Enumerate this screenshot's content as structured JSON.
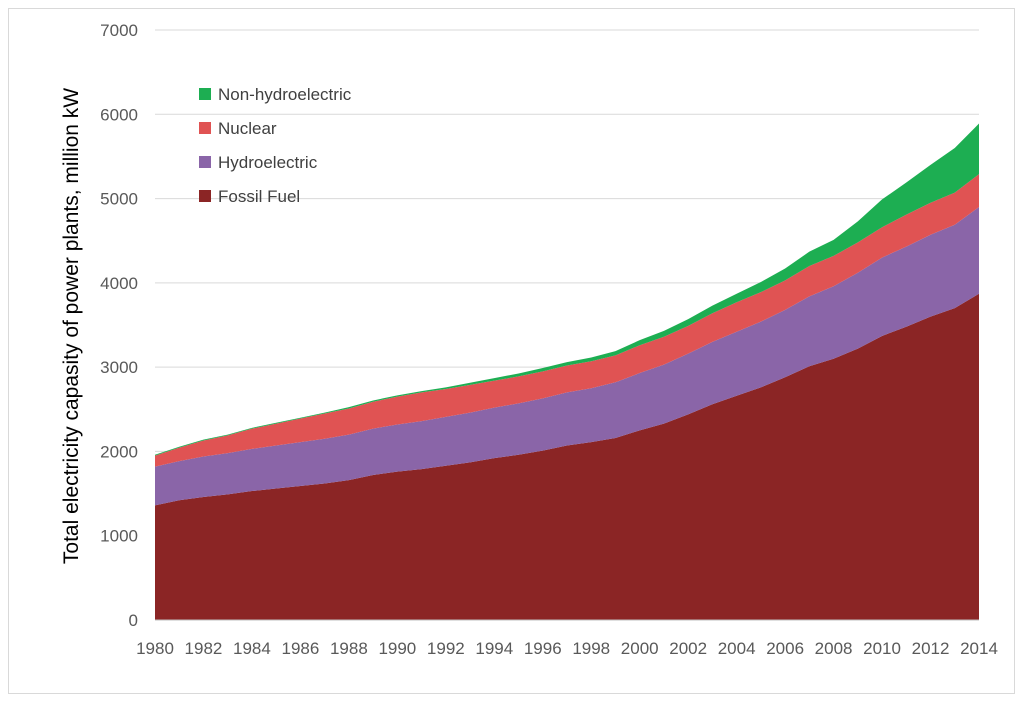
{
  "chart_data": {
    "type": "area",
    "stacked": true,
    "title": "",
    "xlabel": "",
    "ylabel": "Total electricity capasity of power plants, million kW",
    "ylim": [
      0,
      7000
    ],
    "yticks": [
      0,
      1000,
      2000,
      3000,
      4000,
      5000,
      6000,
      7000
    ],
    "xtick_labels": [
      "1980",
      "1982",
      "1984",
      "1986",
      "1988",
      "1990",
      "1992",
      "1994",
      "1996",
      "1998",
      "2000",
      "2002",
      "2004",
      "2006",
      "2008",
      "2010",
      "2012",
      "2014"
    ],
    "grid": "horizontal",
    "legend_position": "top-left",
    "x": [
      1980,
      1981,
      1982,
      1983,
      1984,
      1985,
      1986,
      1987,
      1988,
      1989,
      1990,
      1991,
      1992,
      1993,
      1994,
      1995,
      1996,
      1997,
      1998,
      1999,
      2000,
      2001,
      2002,
      2003,
      2004,
      2005,
      2006,
      2007,
      2008,
      2009,
      2010,
      2011,
      2012,
      2013,
      2014
    ],
    "series": [
      {
        "name": "Fossil Fuel",
        "color": "#8B2525",
        "values": [
          1360,
          1420,
          1460,
          1490,
          1530,
          1560,
          1590,
          1620,
          1660,
          1720,
          1760,
          1790,
          1830,
          1870,
          1920,
          1960,
          2010,
          2070,
          2110,
          2160,
          2250,
          2330,
          2440,
          2560,
          2660,
          2760,
          2880,
          3010,
          3100,
          3220,
          3370,
          3480,
          3600,
          3700,
          3870
        ]
      },
      {
        "name": "Hydroelectric",
        "color": "#8A65A8",
        "values": [
          460,
          465,
          480,
          490,
          500,
          510,
          520,
          530,
          540,
          550,
          560,
          570,
          580,
          590,
          600,
          610,
          620,
          630,
          640,
          660,
          680,
          700,
          720,
          740,
          760,
          780,
          800,
          830,
          860,
          900,
          930,
          950,
          970,
          990,
          1030
        ]
      },
      {
        "name": "Nuclear",
        "color": "#E05353",
        "values": [
          130,
          160,
          190,
          210,
          240,
          260,
          280,
          300,
          310,
          320,
          330,
          340,
          330,
          330,
          320,
          320,
          320,
          320,
          320,
          320,
          330,
          330,
          330,
          340,
          350,
          350,
          350,
          360,
          360,
          360,
          360,
          380,
          380,
          380,
          390
        ]
      },
      {
        "name": "Non-hydroelectric",
        "color": "#1DAE52",
        "values": [
          10,
          10,
          10,
          10,
          10,
          10,
          10,
          10,
          15,
          15,
          15,
          15,
          20,
          25,
          30,
          35,
          40,
          40,
          45,
          50,
          60,
          70,
          80,
          90,
          100,
          120,
          140,
          170,
          190,
          250,
          330,
          380,
          450,
          530,
          600
        ]
      }
    ]
  }
}
